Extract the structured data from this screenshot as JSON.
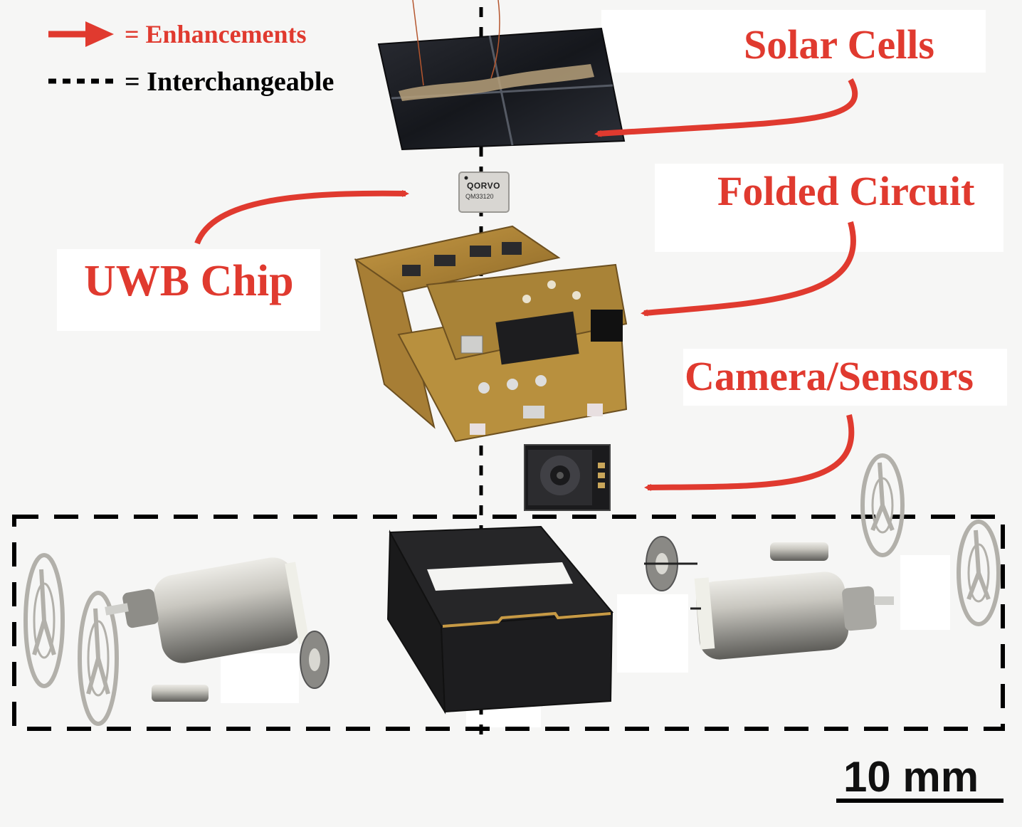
{
  "legend": {
    "enhancements": "= Enhancements",
    "interchangeable": "= Interchangeable"
  },
  "labels": {
    "solar_cells": "Solar Cells",
    "folded_circuit": "Folded Circuit",
    "uwb_chip": "UWB Chip",
    "camera_sensors": "Camera/Sensors"
  },
  "chip": {
    "brand": "QORVO",
    "model": "QM33120"
  },
  "scale_bar": {
    "label": "10 mm"
  },
  "colors": {
    "accent_red": "#e03a2f",
    "pcb_gold": "#b38a3e",
    "solar_dark": "#1b1d22",
    "metal": "#b9b8b3"
  }
}
